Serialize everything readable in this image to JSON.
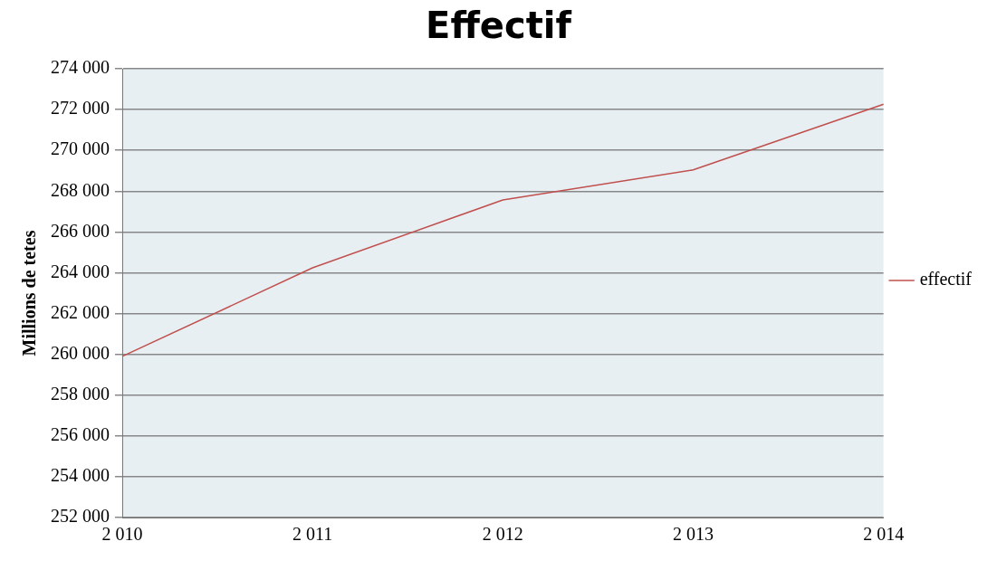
{
  "chart_data": {
    "type": "line",
    "title": "Effectif",
    "ylabel": "Millions de tetes",
    "categories": [
      "2 010",
      "2 011",
      "2 012",
      "2 013",
      "2 014"
    ],
    "series": [
      {
        "name": "effectif",
        "color": "#c0504d",
        "values": [
          259900,
          264240,
          267570,
          269040,
          272260
        ]
      }
    ],
    "ylim": [
      252000,
      274000
    ],
    "yticks": [
      {
        "value": 252000,
        "label": "252 000"
      },
      {
        "value": 254000,
        "label": "254 000"
      },
      {
        "value": 256000,
        "label": "256 000"
      },
      {
        "value": 258000,
        "label": "258 000"
      },
      {
        "value": 260000,
        "label": "260 000"
      },
      {
        "value": 262000,
        "label": "262 000"
      },
      {
        "value": 264000,
        "label": "264 000"
      },
      {
        "value": 266000,
        "label": "266 000"
      },
      {
        "value": 268000,
        "label": "268 000"
      },
      {
        "value": 270000,
        "label": "270 000"
      },
      {
        "value": 272000,
        "label": "272 000"
      },
      {
        "value": 274000,
        "label": "274 000"
      }
    ],
    "grid": "y",
    "legend": "right",
    "marker": "none",
    "line_style": "solid"
  }
}
